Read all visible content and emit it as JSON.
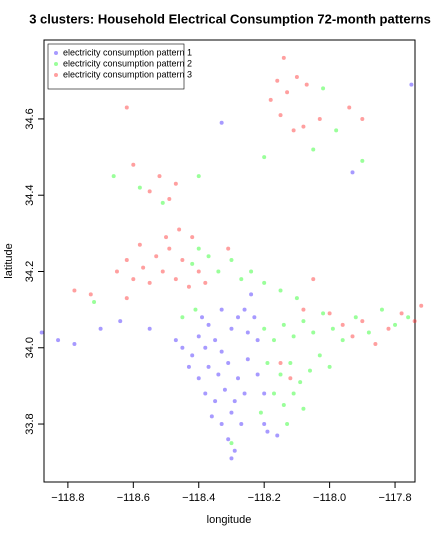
{
  "chart_data": {
    "type": "scatter",
    "title": "3 clusters: Household Electrical Consumption 72-month patterns",
    "x_label": "longitude",
    "y_label": "latitude",
    "xlim": [
      -118.873,
      -117.739
    ],
    "ylim": [
      33.648,
      34.807
    ],
    "xticks": [
      {
        "value": -118.8,
        "label": "−118.8"
      },
      {
        "value": -118.6,
        "label": "−118.6"
      },
      {
        "value": -118.4,
        "label": "−118.4"
      },
      {
        "value": -118.2,
        "label": "−118.2"
      },
      {
        "value": -118.0,
        "label": "−118.0"
      },
      {
        "value": -117.8,
        "label": "−117.8"
      }
    ],
    "yticks": [
      {
        "value": 33.8,
        "label": "33.8"
      },
      {
        "value": 34.0,
        "label": "34.0"
      },
      {
        "value": 34.2,
        "label": "34.2"
      },
      {
        "value": 34.4,
        "label": "34.4"
      },
      {
        "value": 34.6,
        "label": "34.6"
      }
    ],
    "legend": "top-left",
    "opacity": 0.45,
    "series": [
      {
        "name": "electricity consumption pattern 1",
        "color": "#3b1fff",
        "x": [
          -118.88,
          -118.83,
          -118.78,
          -118.7,
          -118.64,
          -118.55,
          -118.45,
          -118.42,
          -118.4,
          -118.37,
          -118.35,
          -118.33,
          -118.3,
          -118.28,
          -118.25,
          -118.22,
          -118.43,
          -118.4,
          -118.37,
          -118.34,
          -118.31,
          -118.28,
          -118.25,
          -118.38,
          -118.35,
          -118.32,
          -118.29,
          -118.26,
          -118.36,
          -118.33,
          -118.3,
          -118.27,
          -118.31,
          -118.29,
          -118.3,
          -118.19,
          -118.16,
          -118.2,
          -118.39,
          -118.33,
          -118.26,
          -118.23,
          -118.47,
          -118.38,
          -118.22,
          -118.2,
          -117.75,
          -118.33,
          -117.93,
          -118.24
        ],
        "values": [
          34.04,
          34.02,
          34.01,
          34.05,
          34.07,
          34.05,
          34.0,
          33.98,
          34.03,
          34.06,
          34.02,
          33.99,
          34.05,
          34.08,
          34.04,
          34.02,
          33.95,
          33.92,
          33.95,
          33.93,
          33.96,
          33.92,
          33.97,
          33.88,
          33.86,
          33.89,
          33.86,
          33.88,
          33.82,
          33.8,
          33.83,
          33.8,
          33.76,
          33.73,
          33.71,
          33.78,
          33.77,
          33.8,
          34.08,
          34.1,
          34.1,
          34.08,
          34.02,
          34.0,
          33.93,
          33.88,
          34.69,
          34.59,
          34.46,
          34.14
        ]
      },
      {
        "name": "electricity consumption pattern 2",
        "color": "#1fff1f",
        "x": [
          -118.2,
          -118.17,
          -118.14,
          -118.11,
          -118.08,
          -118.05,
          -118.02,
          -117.99,
          -117.96,
          -117.92,
          -117.88,
          -117.84,
          -117.8,
          -117.76,
          -118.19,
          -118.15,
          -118.12,
          -118.09,
          -118.06,
          -118.03,
          -118.0,
          -118.17,
          -118.14,
          -118.11,
          -118.08,
          -118.21,
          -118.13,
          -118.42,
          -118.4,
          -118.37,
          -118.34,
          -118.3,
          -118.27,
          -118.24,
          -118.2,
          -118.15,
          -118.1,
          -118.45,
          -118.41,
          -118.51,
          -118.58,
          -118.72,
          -118.66,
          -118.2,
          -118.05,
          -117.98,
          -117.9,
          -118.02,
          -118.3,
          -118.4
        ],
        "values": [
          34.05,
          34.02,
          34.06,
          34.03,
          34.07,
          34.04,
          34.09,
          34.05,
          34.02,
          34.08,
          34.04,
          34.1,
          34.06,
          34.08,
          33.96,
          33.93,
          33.96,
          33.91,
          33.94,
          33.98,
          33.95,
          33.88,
          33.85,
          33.88,
          33.84,
          33.83,
          33.8,
          34.22,
          34.26,
          34.24,
          34.2,
          34.23,
          34.18,
          34.2,
          34.17,
          34.15,
          34.13,
          34.08,
          34.1,
          34.38,
          34.42,
          34.12,
          34.45,
          34.5,
          34.52,
          34.57,
          34.49,
          34.68,
          33.75,
          34.45
        ]
      },
      {
        "name": "electricity consumption pattern 3",
        "color": "#ff2a2a",
        "x": [
          -118.65,
          -118.62,
          -118.6,
          -118.57,
          -118.55,
          -118.53,
          -118.51,
          -118.49,
          -118.47,
          -118.45,
          -118.43,
          -118.42,
          -118.46,
          -118.5,
          -118.58,
          -118.4,
          -118.38,
          -118.78,
          -118.73,
          -118.62,
          -118.55,
          -118.52,
          -118.49,
          -118.47,
          -118.6,
          -118.31,
          -118.16,
          -118.13,
          -118.1,
          -118.07,
          -118.18,
          -118.15,
          -118.11,
          -118.08,
          -118.03,
          -118.14,
          -117.94,
          -117.9,
          -118.05,
          -118.08,
          -118.0,
          -117.96,
          -117.93,
          -117.9,
          -117.86,
          -117.82,
          -117.78,
          -117.74,
          -117.72,
          -118.15,
          -118.12,
          -118.62
        ],
        "values": [
          34.2,
          34.23,
          34.18,
          34.21,
          34.17,
          34.24,
          34.2,
          34.26,
          34.18,
          34.23,
          34.16,
          34.29,
          34.31,
          34.29,
          34.27,
          34.2,
          34.17,
          34.15,
          34.14,
          34.13,
          34.41,
          34.45,
          34.39,
          34.43,
          34.48,
          34.26,
          34.7,
          34.67,
          34.71,
          34.69,
          34.65,
          34.61,
          34.57,
          34.58,
          34.6,
          34.76,
          34.63,
          34.6,
          34.18,
          34.1,
          34.09,
          34.06,
          34.03,
          34.07,
          34.01,
          34.05,
          34.09,
          34.07,
          34.11,
          33.96,
          33.92,
          34.63
        ]
      }
    ]
  }
}
